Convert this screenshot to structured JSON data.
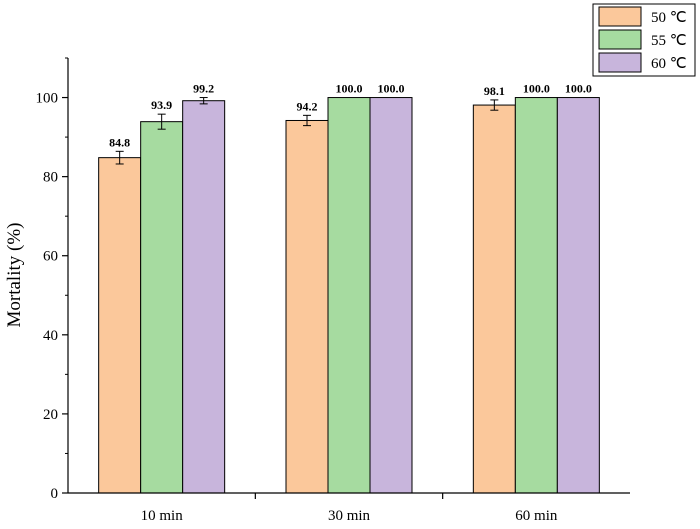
{
  "chart_data": {
    "type": "bar",
    "categories": [
      "10 min",
      "30 min",
      "60 min"
    ],
    "series": [
      {
        "name": "50 ℃",
        "color": "#fbc89b",
        "values": [
          84.8,
          94.2,
          98.1
        ],
        "errors": [
          1.6,
          1.3,
          1.3
        ],
        "labels": [
          "84.8",
          "94.2",
          "98.1"
        ]
      },
      {
        "name": "55 ℃",
        "color": "#a6dba0",
        "values": [
          93.9,
          100.0,
          100.0
        ],
        "errors": [
          1.9,
          0,
          0
        ],
        "labels": [
          "93.9",
          "100.0",
          "100.0"
        ]
      },
      {
        "name": "60 ℃",
        "color": "#c8b5dc",
        "values": [
          99.2,
          100.0,
          100.0
        ],
        "errors": [
          0.8,
          0,
          0
        ],
        "labels": [
          "99.2",
          "100.0",
          "100.0"
        ]
      }
    ],
    "xlabel": "",
    "ylabel": "Mortality (%)",
    "ylim": [
      0,
      110
    ],
    "yticks": [
      0,
      20,
      40,
      60,
      80,
      100
    ],
    "grid": false,
    "legend": "top-right"
  }
}
